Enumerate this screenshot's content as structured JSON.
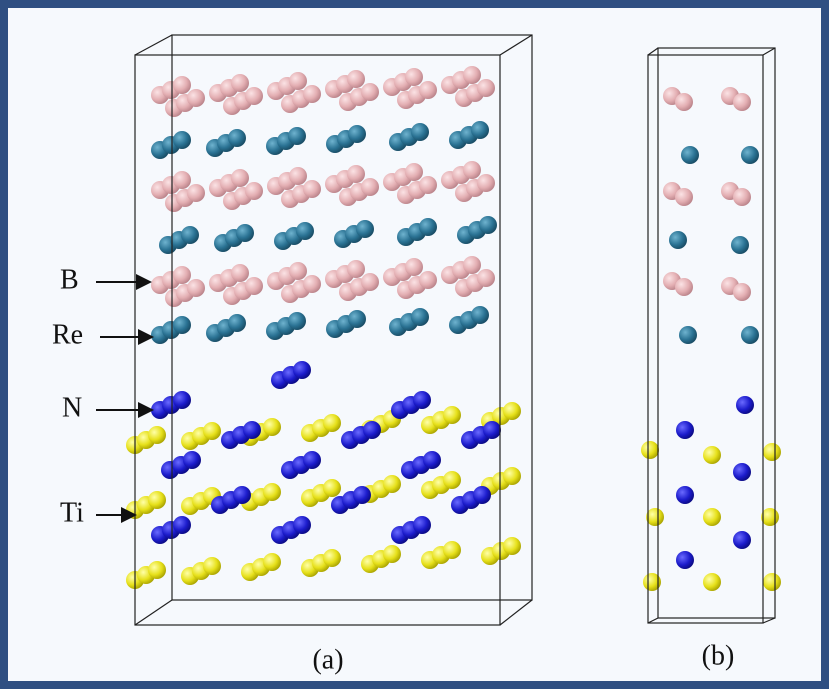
{
  "labels": [
    "B",
    "Re",
    "N",
    "Ti"
  ],
  "captions": [
    "(a)",
    "(b)"
  ]
}
